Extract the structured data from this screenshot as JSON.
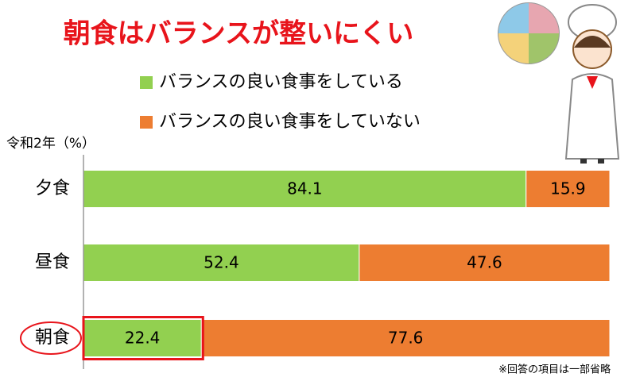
{
  "chart_data": {
    "type": "stacked-barh",
    "title": "朝食はバランスが整いにくい",
    "y_label": "令和2年（%）",
    "note": "※回答の項目は一部省略",
    "categories": [
      "夕食",
      "昼食",
      "朝食"
    ],
    "series": [
      {
        "name": "バランスの良い食事をしている",
        "color": "#92d050",
        "values": [
          84.1,
          52.4,
          22.4
        ]
      },
      {
        "name": "バランスの良い食事をしていない",
        "color": "#ed7d31",
        "values": [
          15.9,
          47.6,
          77.6
        ]
      }
    ],
    "xlim": [
      0,
      100
    ]
  }
}
